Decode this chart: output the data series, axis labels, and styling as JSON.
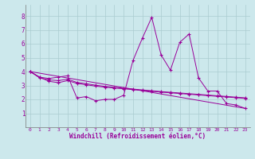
{
  "xlabel": "Windchill (Refroidissement éolien,°C)",
  "bg_color": "#cce8ec",
  "grid_color": "#aaccd0",
  "line_color": "#990099",
  "xlim": [
    -0.5,
    23.5
  ],
  "ylim": [
    0,
    8.8
  ],
  "xticks": [
    0,
    1,
    2,
    3,
    4,
    5,
    6,
    7,
    8,
    9,
    10,
    11,
    12,
    13,
    14,
    15,
    16,
    17,
    18,
    19,
    20,
    21,
    22,
    23
  ],
  "yticks": [
    1,
    2,
    3,
    4,
    5,
    6,
    7,
    8
  ],
  "series": [
    [
      0,
      4.0
    ],
    [
      1,
      3.6
    ],
    [
      2,
      3.5
    ],
    [
      3,
      3.6
    ],
    [
      4,
      3.7
    ],
    [
      5,
      2.1
    ],
    [
      6,
      2.2
    ],
    [
      7,
      1.9
    ],
    [
      8,
      2.0
    ],
    [
      9,
      2.0
    ],
    [
      10,
      2.3
    ],
    [
      11,
      4.8
    ],
    [
      12,
      6.4
    ],
    [
      13,
      7.9
    ],
    [
      14,
      5.2
    ],
    [
      15,
      4.1
    ],
    [
      16,
      6.1
    ],
    [
      17,
      6.7
    ],
    [
      18,
      3.55
    ],
    [
      19,
      2.6
    ],
    [
      20,
      2.6
    ],
    [
      21,
      1.7
    ],
    [
      22,
      1.6
    ],
    [
      23,
      1.35
    ]
  ],
  "line2": [
    [
      0,
      4.0
    ],
    [
      1,
      3.6
    ],
    [
      2,
      3.3
    ],
    [
      3,
      3.2
    ],
    [
      4,
      3.35
    ],
    [
      5,
      3.15
    ],
    [
      6,
      3.05
    ],
    [
      7,
      2.95
    ],
    [
      8,
      2.88
    ],
    [
      9,
      2.82
    ],
    [
      10,
      2.76
    ],
    [
      11,
      2.7
    ],
    [
      12,
      2.64
    ],
    [
      13,
      2.58
    ],
    [
      14,
      2.52
    ],
    [
      15,
      2.47
    ],
    [
      16,
      2.42
    ],
    [
      17,
      2.37
    ],
    [
      18,
      2.32
    ],
    [
      19,
      2.27
    ],
    [
      20,
      2.22
    ],
    [
      21,
      2.17
    ],
    [
      22,
      2.12
    ],
    [
      23,
      2.07
    ]
  ],
  "line3": [
    [
      0,
      4.0
    ],
    [
      1,
      3.55
    ],
    [
      2,
      3.4
    ],
    [
      3,
      3.35
    ],
    [
      4,
      3.45
    ],
    [
      5,
      3.22
    ],
    [
      6,
      3.12
    ],
    [
      7,
      3.02
    ],
    [
      8,
      2.93
    ],
    [
      9,
      2.86
    ],
    [
      10,
      2.8
    ],
    [
      11,
      2.74
    ],
    [
      12,
      2.68
    ],
    [
      13,
      2.62
    ],
    [
      14,
      2.56
    ],
    [
      15,
      2.51
    ],
    [
      16,
      2.46
    ],
    [
      17,
      2.41
    ],
    [
      18,
      2.36
    ],
    [
      19,
      2.31
    ],
    [
      20,
      2.26
    ],
    [
      21,
      2.21
    ],
    [
      22,
      2.16
    ],
    [
      23,
      2.11
    ]
  ],
  "line4": [
    [
      0,
      4.0
    ],
    [
      23,
      1.35
    ]
  ]
}
